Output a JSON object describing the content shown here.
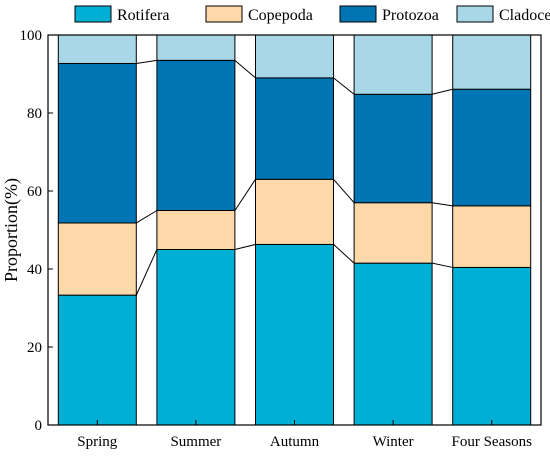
{
  "chart_data": {
    "type": "bar",
    "stacked": true,
    "categories": [
      "Spring",
      "Summer",
      "Autumn",
      "Winter",
      "Four Seasons"
    ],
    "series": [
      {
        "name": "Rotifera",
        "color": "#00b0d4",
        "values": [
          33.3,
          45.0,
          46.3,
          41.5,
          40.4
        ]
      },
      {
        "name": "Copepoda",
        "color": "#fdd8a8",
        "values": [
          18.5,
          10.0,
          16.7,
          15.5,
          15.8
        ]
      },
      {
        "name": "Protozoa",
        "color": "#0075b4",
        "values": [
          40.9,
          38.5,
          26.0,
          27.8,
          29.9
        ]
      },
      {
        "name": "Cladocera",
        "color": "#a8d8e8",
        "values": [
          7.3,
          6.5,
          11.0,
          15.2,
          13.9
        ]
      }
    ],
    "ylabel": "Proportion(%)",
    "xlabel": "",
    "ylim": [
      0,
      100
    ],
    "yticks": [
      0,
      20,
      40,
      60,
      80,
      100
    ],
    "legend": "top",
    "grid": false,
    "connector_lines": true
  }
}
